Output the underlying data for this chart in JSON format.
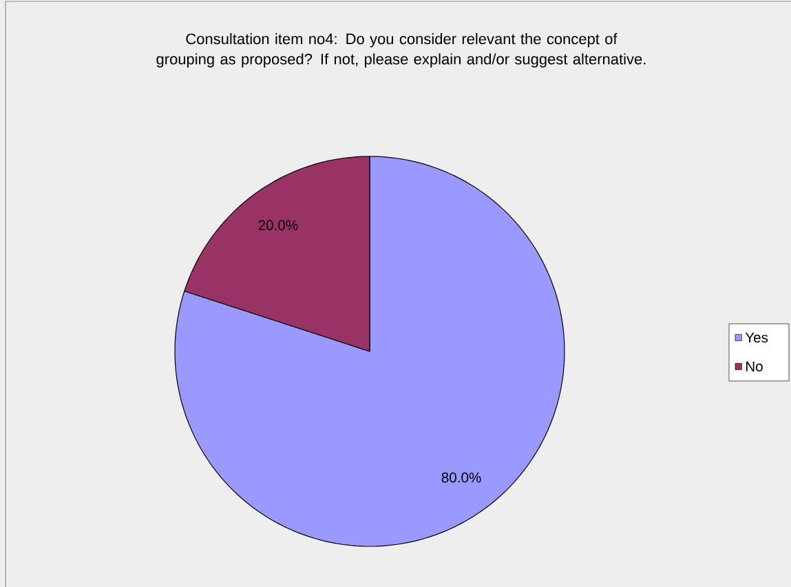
{
  "chart_data": {
    "type": "pie",
    "title": "Consultation item no4: Do you consider relevant the concept of grouping as proposed? If not, please explain and/or suggest alternative.",
    "categories": [
      "Yes",
      "No"
    ],
    "values": [
      80,
      20
    ],
    "colors": [
      "#9999ff",
      "#993366"
    ],
    "value_labels": [
      "80.0%",
      "20.0%"
    ],
    "legend": "right"
  }
}
